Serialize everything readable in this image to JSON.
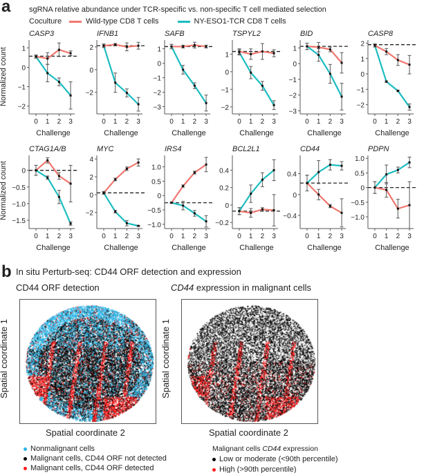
{
  "panel_a": {
    "label": "a",
    "title": "sgRNA relative abundance under TCR-specific vs. non-specific T cell mediated selection",
    "legend_title": "Coculture",
    "legend": [
      {
        "name": "Wild-type CD8 T cells",
        "color": "#f0776f"
      },
      {
        "name": "NY-ESO1-TCR CD8 T cells",
        "color": "#1bbcc0"
      }
    ],
    "ylabel": "Normalized count",
    "xlabel": "Challenge"
  },
  "chart_data": [
    {
      "type": "line",
      "gene": "CASP3",
      "x": [
        0,
        1,
        2,
        3
      ],
      "baseline": 0.57,
      "ylim": [
        -2.4,
        1.4
      ],
      "yticks": [
        -2,
        -1,
        0,
        1
      ],
      "series": [
        {
          "name": "Wild-type CD8 T cells",
          "values": [
            0.55,
            0.45,
            0.9,
            0.72
          ],
          "err": [
            0.08,
            0.3,
            0.35,
            0.12
          ]
        },
        {
          "name": "NY-ESO1-TCR CD8 T cells",
          "values": [
            0.55,
            -0.3,
            -0.75,
            -1.45
          ],
          "err": [
            0.08,
            0.45,
            0.2,
            0.7
          ]
        }
      ]
    },
    {
      "type": "line",
      "gene": "IFNB1",
      "x": [
        0,
        1,
        2,
        3
      ],
      "baseline": 2.1,
      "ylim": [
        -3.9,
        2.6
      ],
      "yticks": [
        -2,
        0,
        2
      ],
      "series": [
        {
          "name": "Wild-type CD8 T cells",
          "values": [
            2.1,
            2.2,
            2.0,
            2.1
          ],
          "err": [
            0.15,
            0.1,
            0.35,
            0.3
          ]
        },
        {
          "name": "NY-ESO1-TCR CD8 T cells",
          "values": [
            2.1,
            -1.15,
            -2.05,
            -3.05
          ],
          "err": [
            0.15,
            0.85,
            0.35,
            0.6
          ]
        }
      ]
    },
    {
      "type": "line",
      "gene": "SAFB",
      "x": [
        0,
        1,
        2,
        3
      ],
      "baseline": 1.15,
      "ylim": [
        -3.5,
        1.6
      ],
      "yticks": [
        -3,
        -2,
        -1,
        0,
        1
      ],
      "series": [
        {
          "name": "Wild-type CD8 T cells",
          "values": [
            1.15,
            1.15,
            1.25,
            1.15
          ],
          "err": [
            0.15,
            0.1,
            0.2,
            0.1
          ]
        },
        {
          "name": "NY-ESO1-TCR CD8 T cells",
          "values": [
            1.15,
            -0.45,
            -1.55,
            -2.75
          ],
          "err": [
            0.15,
            0.3,
            0.2,
            0.55
          ]
        }
      ]
    },
    {
      "type": "line",
      "gene": "TSPYL2",
      "x": [
        0,
        1,
        2,
        3
      ],
      "baseline": 1.15,
      "ylim": [
        -2.4,
        1.8
      ],
      "yticks": [
        -2,
        -1,
        0,
        1
      ],
      "series": [
        {
          "name": "Wild-type CD8 T cells",
          "values": [
            1.15,
            1.0,
            1.15,
            1.05
          ],
          "err": [
            0.15,
            0.3,
            0.45,
            0.2
          ]
        },
        {
          "name": "NY-ESO1-TCR CD8 T cells",
          "values": [
            1.1,
            -0.05,
            -0.8,
            -1.9
          ],
          "err": [
            0.15,
            0.35,
            0.25,
            0.25
          ]
        }
      ]
    },
    {
      "type": "line",
      "gene": "BID",
      "x": [
        0,
        1,
        2,
        3
      ],
      "baseline": 1.1,
      "ylim": [
        -3.2,
        1.5
      ],
      "yticks": [
        -3,
        -2,
        -1,
        0,
        1
      ],
      "series": [
        {
          "name": "Wild-type CD8 T cells",
          "values": [
            1.1,
            1.05,
            0.9,
            0.05
          ],
          "err": [
            0.2,
            0.3,
            0.15,
            0.65
          ]
        },
        {
          "name": "NY-ESO1-TCR CD8 T cells",
          "values": [
            1.1,
            0.55,
            -0.65,
            -2.1
          ],
          "err": [
            0.2,
            0.4,
            0.6,
            0.85
          ]
        }
      ]
    },
    {
      "type": "line",
      "gene": "CASP8",
      "x": [
        0,
        1,
        2,
        3
      ],
      "baseline": 1.9,
      "ylim": [
        -2.6,
        2.2
      ],
      "yticks": [
        -2,
        -1,
        0,
        1,
        2
      ],
      "series": [
        {
          "name": "Wild-type CD8 T cells",
          "values": [
            1.85,
            1.45,
            0.9,
            0.6
          ],
          "err": [
            0.1,
            0.2,
            0.35,
            0.6
          ]
        },
        {
          "name": "NY-ESO1-TCR CD8 T cells",
          "values": [
            1.85,
            -0.5,
            -1.1,
            -2.15
          ],
          "err": [
            0.1,
            0.05,
            0.05,
            0.2
          ]
        }
      ]
    },
    {
      "type": "line",
      "gene": "CTAG1A/B",
      "x": [
        0,
        1,
        2,
        3
      ],
      "baseline": 0,
      "ylim": [
        -1.75,
        0.45
      ],
      "yticks": [
        -1.5,
        -1.0,
        -0.5,
        0
      ],
      "series": [
        {
          "name": "Wild-type CD8 T cells",
          "values": [
            0,
            0.3,
            -0.17,
            -0.4
          ],
          "err": [
            0.15,
            0.08,
            0.1,
            0.55
          ]
        },
        {
          "name": "NY-ESO1-TCR CD8 T cells",
          "values": [
            0,
            -0.22,
            -0.8,
            -1.6
          ],
          "err": [
            0.15,
            0.05,
            0.2,
            0.05
          ]
        }
      ]
    },
    {
      "type": "line",
      "gene": "MYC",
      "x": [
        0,
        1,
        2,
        3
      ],
      "baseline": 0.2,
      "ylim": [
        -3.8,
        4.4
      ],
      "yticks": [
        -2,
        0,
        2,
        4
      ],
      "series": [
        {
          "name": "Wild-type CD8 T cells",
          "values": [
            0.2,
            1.7,
            2.9,
            3.6
          ],
          "err": [
            0.15,
            0.15,
            0.2,
            0.4
          ]
        },
        {
          "name": "NY-ESO1-TCR CD8 T cells",
          "values": [
            0.2,
            -1.9,
            -3.2,
            -3.5
          ],
          "err": [
            0.15,
            0.15,
            0.3,
            0.05
          ]
        }
      ]
    },
    {
      "type": "line",
      "gene": "IRS4",
      "x": [
        0,
        1,
        2,
        3
      ],
      "baseline": -0.25,
      "ylim": [
        -1.15,
        1.4
      ],
      "yticks": [
        -1.0,
        -0.5,
        0,
        0.5,
        1.0
      ],
      "series": [
        {
          "name": "Wild-type CD8 T cells",
          "values": [
            -0.25,
            0.33,
            0.8,
            1.08
          ],
          "err": [
            0.02,
            0.04,
            0.05,
            0.25
          ]
        },
        {
          "name": "NY-ESO1-TCR CD8 T cells",
          "values": [
            -0.25,
            -0.35,
            -0.62,
            -0.9
          ],
          "err": [
            0.02,
            0.15,
            0.1,
            0.2
          ]
        }
      ]
    },
    {
      "type": "line",
      "gene": "BCL2L1",
      "x": [
        0,
        1,
        2,
        3
      ],
      "baseline": -0.07,
      "ylim": [
        -0.27,
        0.57
      ],
      "yticks": [
        -0.2,
        0,
        0.2,
        0.4
      ],
      "series": [
        {
          "name": "Wild-type CD8 T cells",
          "values": [
            -0.07,
            -0.09,
            -0.05,
            -0.06
          ],
          "err": [
            0.04,
            0.05,
            0.02,
            0.18
          ]
        },
        {
          "name": "NY-ESO1-TCR CD8 T cells",
          "values": [
            -0.07,
            0.13,
            0.29,
            0.4
          ],
          "err": [
            0.04,
            0.1,
            0.08,
            0.12
          ]
        }
      ]
    },
    {
      "type": "line",
      "gene": "CD44",
      "x": [
        0,
        1,
        2,
        3
      ],
      "baseline": 0.22,
      "ylim": [
        -0.65,
        0.75
      ],
      "yticks": [
        -0.4,
        0,
        0.4
      ],
      "series": [
        {
          "name": "Wild-type CD8 T cells",
          "values": [
            0.22,
            0,
            -0.22,
            -0.35
          ],
          "err": [
            0.15,
            0.1,
            0.03,
            0.27
          ]
        },
        {
          "name": "NY-ESO1-TCR CD8 T cells",
          "values": [
            0.22,
            0.43,
            0.57,
            0.55
          ],
          "err": [
            0.15,
            0.22,
            0.1,
            0.08
          ]
        }
      ]
    },
    {
      "type": "line",
      "gene": "PDPN",
      "x": [
        0,
        1,
        2,
        3
      ],
      "baseline": 0,
      "ylim": [
        -1.4,
        1.1
      ],
      "yticks": [
        -1.0,
        -0.5,
        0,
        0.5,
        1.0
      ],
      "series": [
        {
          "name": "Wild-type CD8 T cells",
          "values": [
            0,
            -0.08,
            -0.72,
            -0.6
          ],
          "err": [
            0.2,
            0.25,
            0.32,
            0.8
          ]
        },
        {
          "name": "NY-ESO1-TCR CD8 T cells",
          "values": [
            0,
            0.45,
            0.6,
            0.86
          ],
          "err": [
            0.2,
            0.32,
            0.1,
            0.18
          ]
        }
      ]
    }
  ],
  "panel_b": {
    "label": "b",
    "title": "In situ Perturb-seq: CD44 ORF detection and expression",
    "left": {
      "title": "CD44 ORF detection",
      "ylabel": "Spatial coordinate 1",
      "xlabel": "Spatial coordinate 2",
      "legend": [
        {
          "name": "Nonmalignant cells",
          "color": "#29b6e8"
        },
        {
          "name": "Malignant cells, CD44 ORF not detected",
          "color": "#000000"
        },
        {
          "name": "Malignant cells, CD44 ORF detected",
          "color": "#ff1a1a"
        }
      ]
    },
    "right": {
      "title_italic": "CD44",
      "title_rest": " expression in malignant cells",
      "ylabel": "Spatial coordinate 1",
      "xlabel": "Spatial coordinate 2",
      "legend_title_pre": "Malignant cells ",
      "legend_title_italic": "CD44",
      "legend_title_post": " expression",
      "legend": [
        {
          "name": "Low or moderate (<90th percentile)",
          "color": "#000000"
        },
        {
          "name": "High (>90th percentile)",
          "color": "#ff1a1a"
        }
      ]
    }
  }
}
